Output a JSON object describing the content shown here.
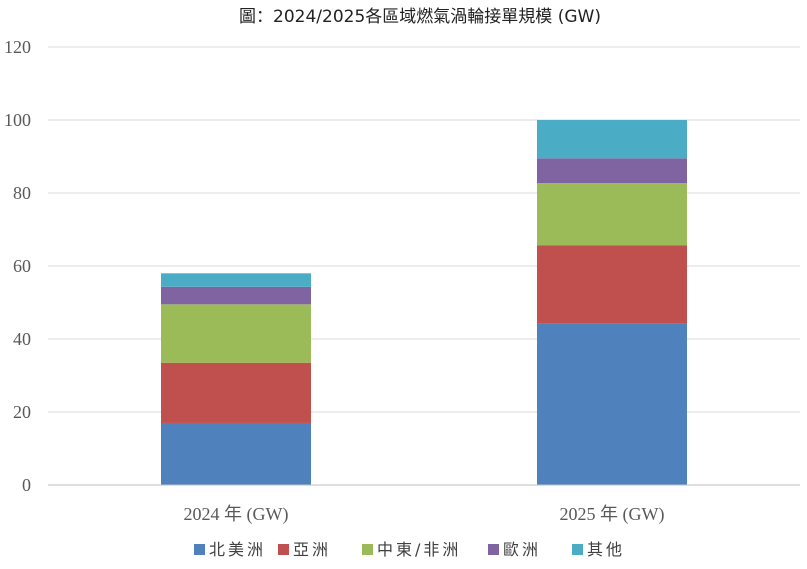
{
  "chart_data": {
    "type": "bar",
    "stacked": true,
    "title": "圖：2024/2025各區域燃氣渦輪接單規模 (GW)",
    "xlabel": "",
    "ylabel": "",
    "categories": [
      "2024 年 (GW)",
      "2025 年 (GW)"
    ],
    "ylim": [
      0,
      120
    ],
    "yticks": [
      0,
      20,
      40,
      60,
      80,
      100,
      120
    ],
    "grid": true,
    "legend_position": "bottom",
    "series": [
      {
        "name": "北美洲",
        "color": "#4f81bd",
        "values": [
          17,
          44.2
        ]
      },
      {
        "name": "亞洲",
        "color": "#c0504d",
        "values": [
          16.5,
          21.5
        ]
      },
      {
        "name": "中東/非洲",
        "color": "#9bbb59",
        "values": [
          16,
          17
        ]
      },
      {
        "name": "歐洲",
        "color": "#8064a2",
        "values": [
          4.8,
          6.8
        ]
      },
      {
        "name": "其他",
        "color": "#4bacc6",
        "values": [
          3.7,
          10.5
        ]
      }
    ]
  }
}
